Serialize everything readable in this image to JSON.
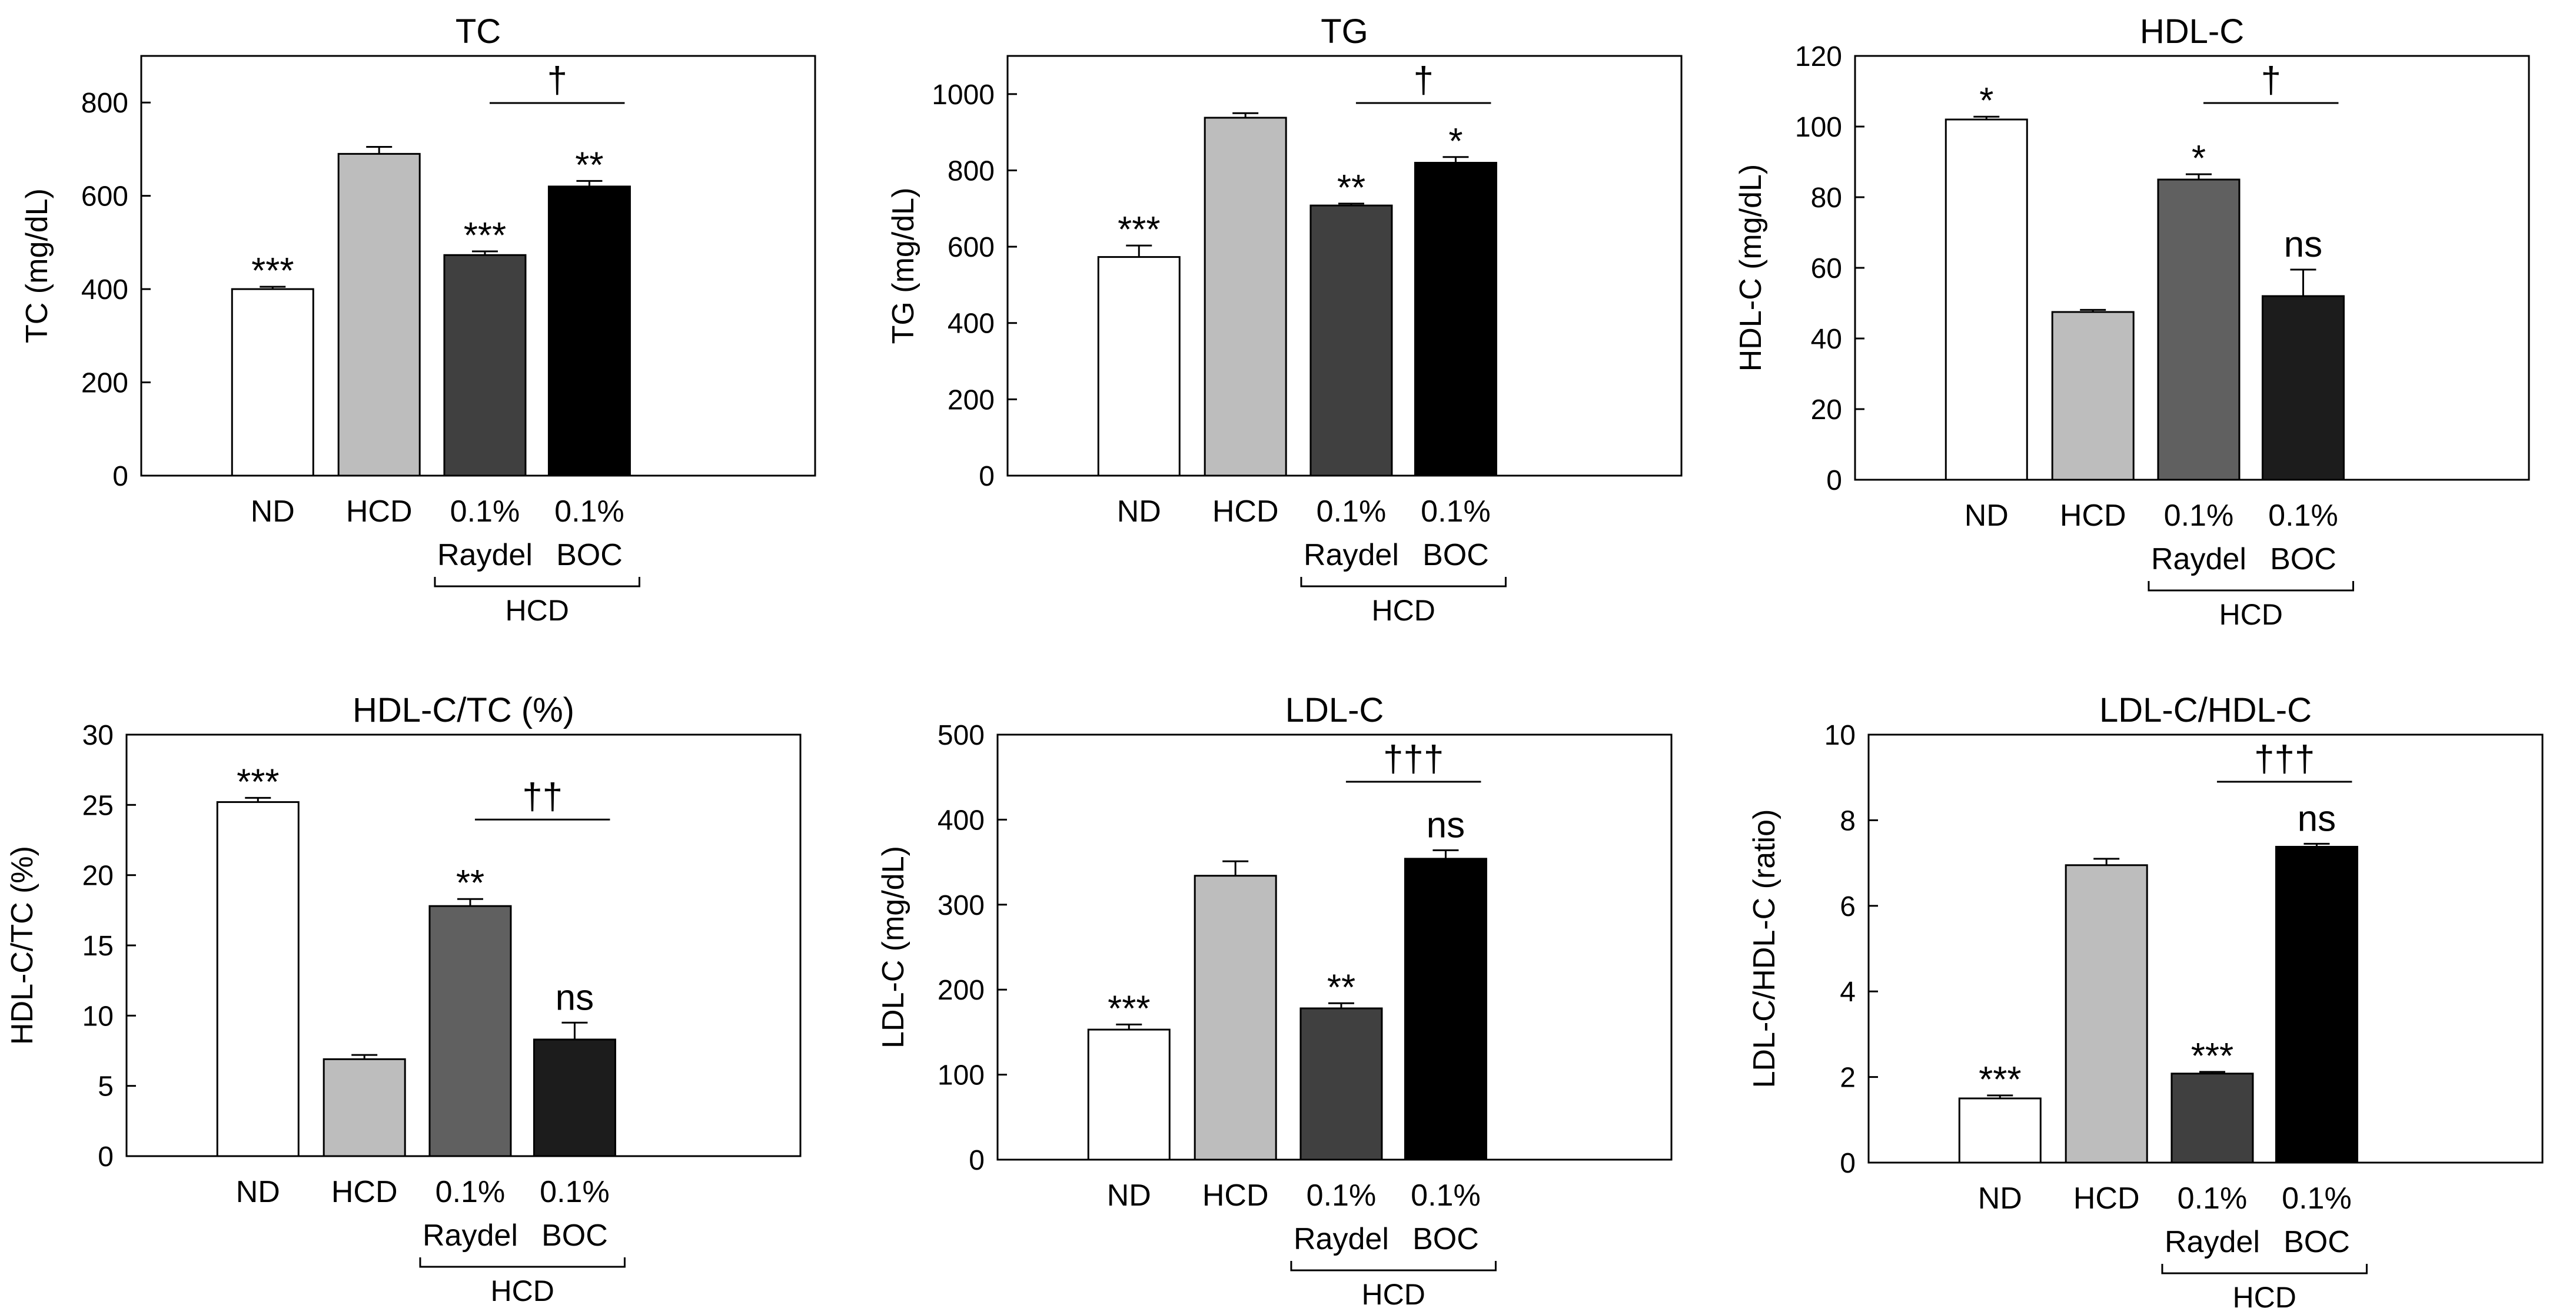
{
  "figure": {
    "group_label": "HCD"
  },
  "chart_data": [
    {
      "type": "bar",
      "title": "TC",
      "ylabel": "TC (mg/dL)",
      "ylim": [
        0,
        900
      ],
      "yticks": [
        0,
        200,
        400,
        600,
        800
      ],
      "categories": [
        "ND",
        "HCD",
        "0.1% Raydel",
        "0.1% BOC"
      ],
      "category_lines": [
        [
          "ND"
        ],
        [
          "HCD"
        ],
        [
          "0.1%",
          "Raydel"
        ],
        [
          "0.1%",
          "BOC"
        ]
      ],
      "values": [
        400,
        690,
        473,
        620
      ],
      "errors": [
        5,
        15,
        8,
        12
      ],
      "significance": [
        "***",
        "",
        "***",
        "**"
      ],
      "comparison": {
        "from": 2,
        "to": 3,
        "label": "†"
      },
      "colors": [
        "#ffffff",
        "#bdbdbd",
        "#404040",
        "#000000"
      ]
    },
    {
      "type": "bar",
      "title": "TG",
      "ylabel": "TG (mg/dL)",
      "ylim": [
        0,
        1100
      ],
      "yticks": [
        0,
        200,
        400,
        600,
        800,
        1000
      ],
      "categories": [
        "ND",
        "HCD",
        "0.1% Raydel",
        "0.1% BOC"
      ],
      "category_lines": [
        [
          "ND"
        ],
        [
          "HCD"
        ],
        [
          "0.1%",
          "Raydel"
        ],
        [
          "0.1%",
          "BOC"
        ]
      ],
      "values": [
        573,
        938,
        708,
        820
      ],
      "errors": [
        30,
        12,
        5,
        15
      ],
      "significance": [
        "***",
        "",
        "**",
        "*"
      ],
      "comparison": {
        "from": 2,
        "to": 3,
        "label": "†"
      },
      "colors": [
        "#ffffff",
        "#bdbdbd",
        "#404040",
        "#000000"
      ]
    },
    {
      "type": "bar",
      "title": "HDL-C",
      "ylabel": "HDL-C (mg/dL)",
      "ylim": [
        0,
        120
      ],
      "yticks": [
        0,
        20,
        40,
        60,
        80,
        100,
        120
      ],
      "categories": [
        "ND",
        "HCD",
        "0.1% Raydel",
        "0.1% BOC"
      ],
      "category_lines": [
        [
          "ND"
        ],
        [
          "HCD"
        ],
        [
          "0.1%",
          "Raydel"
        ],
        [
          "0.1%",
          "BOC"
        ]
      ],
      "values": [
        102,
        47.5,
        85,
        52
      ],
      "errors": [
        0.8,
        0.6,
        1.5,
        7.5
      ],
      "significance": [
        "*",
        "",
        "*",
        "ns"
      ],
      "comparison": {
        "from": 2,
        "to": 3,
        "label": "†"
      },
      "colors": [
        "#ffffff",
        "#bdbdbd",
        "#606060",
        "#1c1c1c"
      ]
    },
    {
      "type": "bar",
      "title": "HDL-C/TC (%)",
      "ylabel": "HDL-C/TC (%)",
      "ylim": [
        0,
        30
      ],
      "yticks": [
        0,
        5,
        10,
        15,
        20,
        25,
        30
      ],
      "categories": [
        "ND",
        "HCD",
        "0.1% Raydel",
        "0.1% BOC"
      ],
      "category_lines": [
        [
          "ND"
        ],
        [
          "HCD"
        ],
        [
          "0.1%",
          "Raydel"
        ],
        [
          "0.1%",
          "BOC"
        ]
      ],
      "values": [
        25.2,
        6.9,
        17.8,
        8.3
      ],
      "errors": [
        0.3,
        0.3,
        0.5,
        1.2
      ],
      "significance": [
        "***",
        "",
        "**",
        "ns"
      ],
      "comparison": {
        "from": 2,
        "to": 3,
        "label": "††"
      },
      "colors": [
        "#ffffff",
        "#bdbdbd",
        "#606060",
        "#1c1c1c"
      ]
    },
    {
      "type": "bar",
      "title": "LDL-C",
      "ylabel": "LDL-C (mg/dL)",
      "ylim": [
        0,
        500
      ],
      "yticks": [
        0,
        100,
        200,
        300,
        400,
        500
      ],
      "categories": [
        "ND",
        "HCD",
        "0.1% Raydel",
        "0.1% BOC"
      ],
      "category_lines": [
        [
          "ND"
        ],
        [
          "HCD"
        ],
        [
          "0.1%",
          "Raydel"
        ],
        [
          "0.1%",
          "BOC"
        ]
      ],
      "values": [
        153,
        334,
        178,
        354
      ],
      "errors": [
        6,
        17,
        6,
        10
      ],
      "significance": [
        "***",
        "",
        "**",
        "ns"
      ],
      "comparison": {
        "from": 2,
        "to": 3,
        "label": "†††"
      },
      "colors": [
        "#ffffff",
        "#bdbdbd",
        "#404040",
        "#000000"
      ]
    },
    {
      "type": "bar",
      "title": "LDL-C/HDL-C",
      "ylabel": "LDL-C/HDL-C (ratio)",
      "ylim": [
        0,
        10
      ],
      "yticks": [
        0,
        2,
        4,
        6,
        8,
        10
      ],
      "categories": [
        "ND",
        "HCD",
        "0.1% Raydel",
        "0.1% BOC"
      ],
      "category_lines": [
        [
          "ND"
        ],
        [
          "HCD"
        ],
        [
          "0.1%",
          "Raydel"
        ],
        [
          "0.1%",
          "BOC"
        ]
      ],
      "values": [
        1.5,
        6.95,
        2.08,
        7.38
      ],
      "errors": [
        0.07,
        0.15,
        0.04,
        0.07
      ],
      "significance": [
        "***",
        "",
        "***",
        "ns"
      ],
      "comparison": {
        "from": 2,
        "to": 3,
        "label": "†††"
      },
      "colors": [
        "#ffffff",
        "#bdbdbd",
        "#404040",
        "#000000"
      ]
    }
  ]
}
